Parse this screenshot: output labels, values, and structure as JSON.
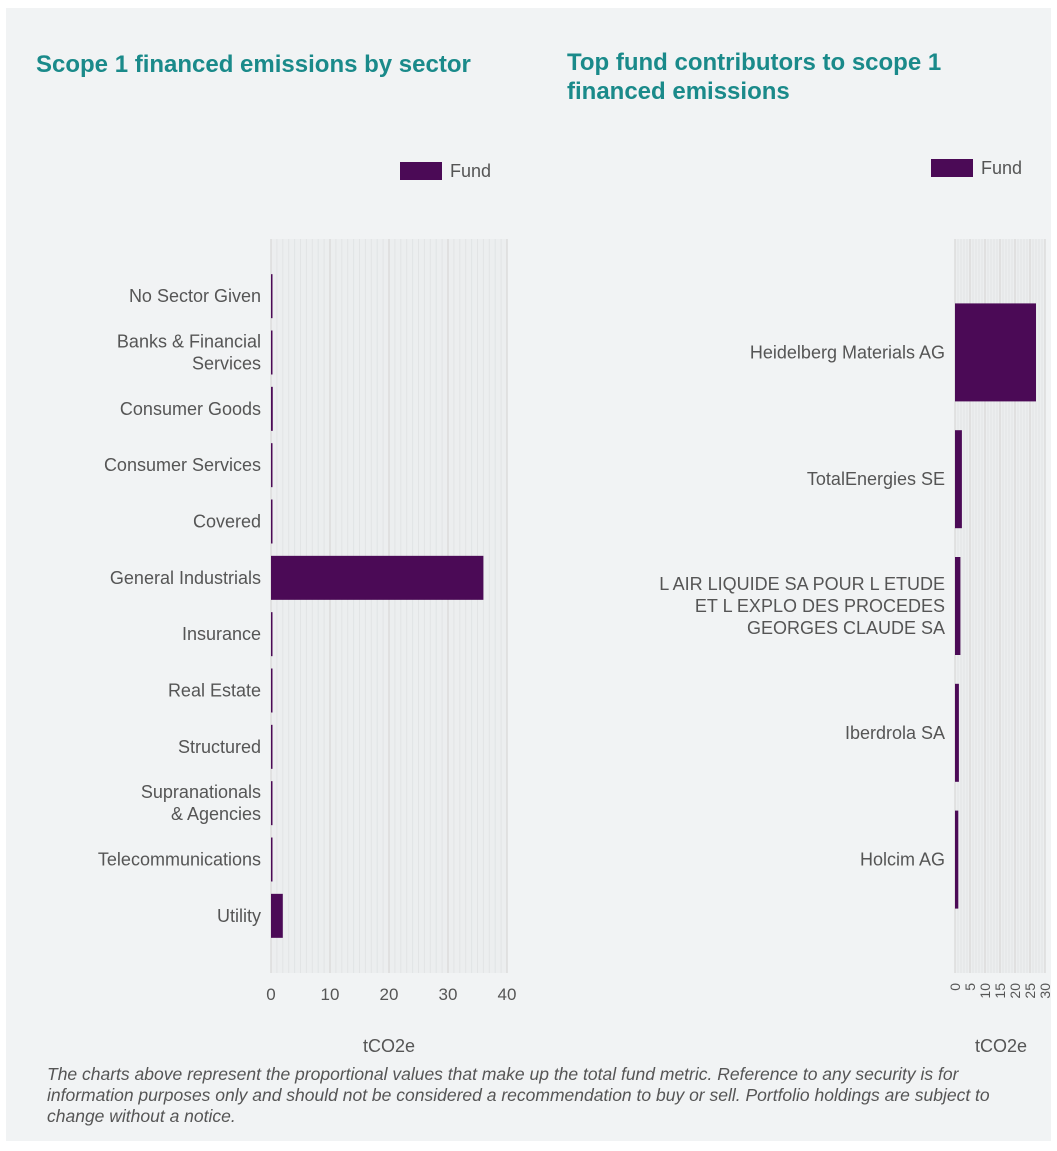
{
  "chart_data": [
    {
      "type": "bar",
      "orientation": "horizontal",
      "title": "Scope 1 financed emissions by sector",
      "categories": [
        [
          "No Sector Given"
        ],
        [
          "Banks & Financial",
          "Services"
        ],
        [
          "Consumer Goods"
        ],
        [
          "Consumer Services"
        ],
        [
          "Covered"
        ],
        [
          "General Industrials"
        ],
        [
          "Insurance"
        ],
        [
          "Real Estate"
        ],
        [
          "Structured"
        ],
        [
          "Supranationals",
          "& Agencies"
        ],
        [
          "Telecommunications"
        ],
        [
          "Utility"
        ]
      ],
      "series": [
        {
          "name": "Fund",
          "values": [
            0,
            0,
            0.3,
            0,
            0,
            36,
            0,
            0,
            0,
            0,
            0,
            2
          ]
        }
      ],
      "xlim": [
        0,
        40
      ],
      "xticks": [
        "0",
        "10",
        "20",
        "30",
        "40"
      ],
      "xlabel": "tCO2e",
      "legend": "top-right",
      "grid": true
    },
    {
      "type": "bar",
      "orientation": "horizontal",
      "title": "Top fund contributors to scope 1 financed emissions",
      "categories": [
        [
          "Heidelberg Materials AG"
        ],
        [
          "TotalEnergies SE"
        ],
        [
          "L AIR LIQUIDE SA POUR L ETUDE",
          "ET L EXPLO DES PROCEDES",
          "GEORGES CLAUDE SA"
        ],
        [
          "Iberdrola SA"
        ],
        [
          "Holcim AG"
        ]
      ],
      "series": [
        {
          "name": "Fund",
          "values": [
            27,
            2.3,
            1.8,
            1.3,
            1.1
          ]
        }
      ],
      "xlim": [
        0,
        30
      ],
      "xticks": [
        "0",
        "5",
        "10",
        "15",
        "20",
        "25",
        "30"
      ],
      "xlabel": "tCO2e",
      "legend": "top-right",
      "grid": true
    }
  ],
  "colors": {
    "bar": "#4b0a56",
    "title": "#1a8a8a",
    "grid": "#dcdcdc"
  },
  "footnote": "The charts above represent the proportional values that make up the total fund metric. Reference to any security is for information purposes only and should not be considered a recommendation to buy or sell. Portfolio holdings are subject to change without a notice."
}
